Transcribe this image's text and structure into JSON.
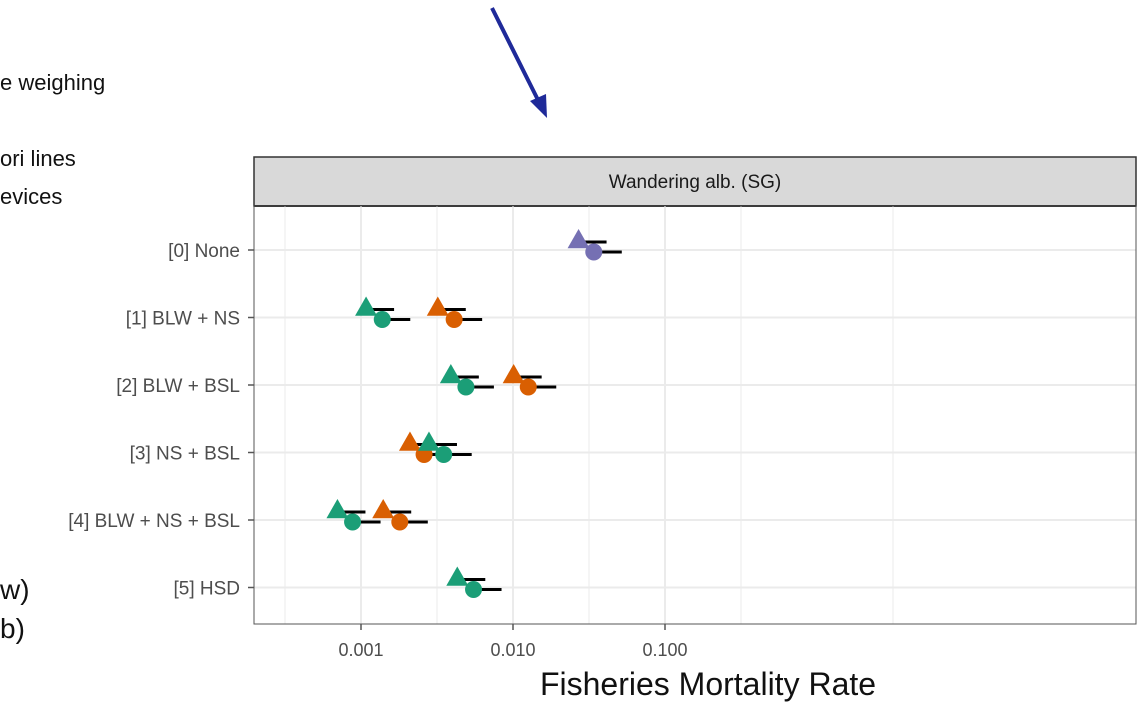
{
  "side_text": {
    "line1": "e weighing",
    "line2": "ori lines",
    "line3": "evices",
    "line4": "w)",
    "line5": "b)"
  },
  "colors": {
    "arrow": "#1f2a99",
    "purple": "#7570b3",
    "orange": "#d95f02",
    "green": "#1b9e77",
    "strip_bg": "#d9d9d9",
    "grid": "#ebebeb"
  },
  "icons": {
    "arrow": "arrow-down-right-icon",
    "triangle_marker": "triangle-marker",
    "circle_marker": "circle-marker"
  },
  "chart_data": {
    "type": "scatter",
    "panel_title": "Wandering alb. (SG)",
    "xlabel": "Fisheries Mortality Rate",
    "ylabel": "",
    "x_scale": "log10",
    "xlim": [
      0.0005,
      0.3
    ],
    "x_ticks": [
      0.001,
      0.01,
      0.1
    ],
    "x_tick_labels": [
      "0.001",
      "0.010",
      "0.100"
    ],
    "categories": [
      "[0] None",
      "[1] BLW + NS",
      "[2] BLW + BSL",
      "[3] NS + BSL",
      "[4] BLW + NS + BSL",
      "[5] HSD"
    ],
    "grid": true,
    "legend": "none",
    "points": [
      {
        "category": "[0] None",
        "color": "purple",
        "shape": "triangle",
        "x": 0.027
      },
      {
        "category": "[0] None",
        "color": "purple",
        "shape": "circle",
        "x": 0.034
      },
      {
        "category": "[1] BLW + NS",
        "color": "green",
        "shape": "triangle",
        "x": 0.00108
      },
      {
        "category": "[1] BLW + NS",
        "color": "green",
        "shape": "circle",
        "x": 0.00138
      },
      {
        "category": "[1] BLW + NS",
        "color": "orange",
        "shape": "triangle",
        "x": 0.0032
      },
      {
        "category": "[1] BLW + NS",
        "color": "orange",
        "shape": "circle",
        "x": 0.0041
      },
      {
        "category": "[2] BLW + BSL",
        "color": "green",
        "shape": "triangle",
        "x": 0.0039
      },
      {
        "category": "[2] BLW + BSL",
        "color": "green",
        "shape": "circle",
        "x": 0.0049
      },
      {
        "category": "[2] BLW + BSL",
        "color": "orange",
        "shape": "triangle",
        "x": 0.0101
      },
      {
        "category": "[2] BLW + BSL",
        "color": "orange",
        "shape": "circle",
        "x": 0.0126
      },
      {
        "category": "[3] NS + BSL",
        "color": "orange",
        "shape": "triangle",
        "x": 0.0021
      },
      {
        "category": "[3] NS + BSL",
        "color": "orange",
        "shape": "circle",
        "x": 0.0026
      },
      {
        "category": "[3] NS + BSL",
        "color": "green",
        "shape": "triangle",
        "x": 0.0028
      },
      {
        "category": "[3] NS + BSL",
        "color": "green",
        "shape": "circle",
        "x": 0.0035
      },
      {
        "category": "[4] BLW + NS + BSL",
        "color": "green",
        "shape": "triangle",
        "x": 0.0007
      },
      {
        "category": "[4] BLW + NS + BSL",
        "color": "green",
        "shape": "circle",
        "x": 0.00088
      },
      {
        "category": "[4] BLW + NS + BSL",
        "color": "orange",
        "shape": "triangle",
        "x": 0.0014
      },
      {
        "category": "[4] BLW + NS + BSL",
        "color": "orange",
        "shape": "circle",
        "x": 0.0018
      },
      {
        "category": "[5] HSD",
        "color": "green",
        "shape": "triangle",
        "x": 0.0043
      },
      {
        "category": "[5] HSD",
        "color": "green",
        "shape": "circle",
        "x": 0.0055
      }
    ]
  }
}
